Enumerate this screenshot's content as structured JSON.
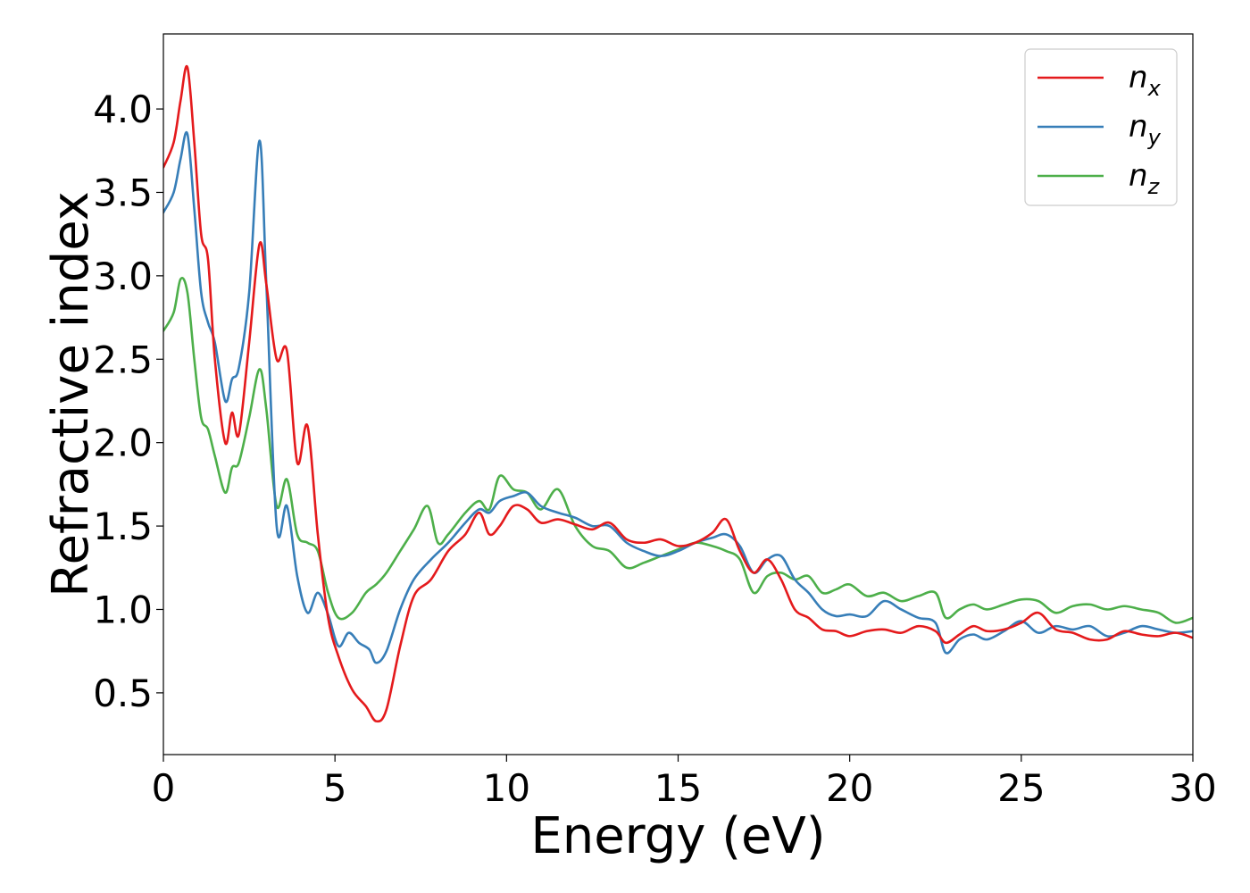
{
  "chart_data": {
    "type": "line",
    "xlabel": "Energy (eV)",
    "ylabel": "Refractive index",
    "xlim": [
      0,
      30
    ],
    "ylim": [
      0.13,
      4.45
    ],
    "xticks": [
      0,
      5,
      10,
      15,
      20,
      25,
      30
    ],
    "xtick_labels": [
      "0",
      "5",
      "10",
      "15",
      "20",
      "25",
      "30"
    ],
    "yticks": [
      0.5,
      1.0,
      1.5,
      2.0,
      2.5,
      3.0,
      3.5,
      4.0
    ],
    "ytick_labels": [
      "0.5",
      "1.0",
      "1.5",
      "2.0",
      "2.5",
      "3.0",
      "3.5",
      "4.0"
    ],
    "grid": false,
    "legend_position": "top-right",
    "series": [
      {
        "name": "n_x",
        "label_main": "n",
        "label_sub": "x",
        "color": "#e41a1c",
        "x": [
          0,
          0.3,
          0.5,
          0.7,
          0.9,
          1.1,
          1.3,
          1.5,
          1.8,
          2.0,
          2.2,
          2.5,
          2.8,
          3.0,
          3.3,
          3.6,
          3.9,
          4.2,
          4.5,
          4.8,
          5.1,
          5.5,
          5.9,
          6.2,
          6.5,
          6.9,
          7.3,
          7.8,
          8.3,
          8.8,
          9.2,
          9.5,
          9.8,
          10.2,
          10.6,
          11.0,
          11.5,
          12.0,
          12.5,
          13.0,
          13.5,
          14.0,
          14.5,
          15.0,
          15.5,
          16.0,
          16.4,
          16.8,
          17.2,
          17.6,
          18.0,
          18.4,
          18.8,
          19.2,
          19.6,
          20.0,
          20.5,
          21.0,
          21.5,
          22.0,
          22.5,
          22.8,
          23.2,
          23.6,
          24.0,
          24.5,
          25.0,
          25.5,
          26.0,
          26.5,
          27.0,
          27.5,
          28.0,
          28.5,
          29.0,
          29.5,
          30.0
        ],
        "y": [
          3.65,
          3.8,
          4.05,
          4.25,
          3.8,
          3.25,
          3.1,
          2.5,
          2.0,
          2.18,
          2.05,
          2.6,
          3.19,
          2.95,
          2.5,
          2.55,
          1.88,
          2.1,
          1.45,
          0.95,
          0.72,
          0.52,
          0.42,
          0.33,
          0.4,
          0.78,
          1.08,
          1.18,
          1.35,
          1.45,
          1.58,
          1.45,
          1.5,
          1.62,
          1.6,
          1.52,
          1.54,
          1.51,
          1.48,
          1.52,
          1.42,
          1.4,
          1.42,
          1.38,
          1.4,
          1.46,
          1.54,
          1.35,
          1.22,
          1.3,
          1.18,
          1.0,
          0.95,
          0.88,
          0.87,
          0.84,
          0.87,
          0.88,
          0.86,
          0.9,
          0.87,
          0.8,
          0.85,
          0.9,
          0.87,
          0.88,
          0.92,
          0.98,
          0.88,
          0.86,
          0.82,
          0.82,
          0.87,
          0.85,
          0.84,
          0.86,
          0.83
        ]
      },
      {
        "name": "n_y",
        "label_main": "n",
        "label_sub": "y",
        "color": "#377eb8",
        "x": [
          0,
          0.3,
          0.5,
          0.7,
          0.9,
          1.1,
          1.3,
          1.5,
          1.8,
          2.0,
          2.2,
          2.5,
          2.8,
          3.0,
          3.3,
          3.6,
          3.9,
          4.2,
          4.5,
          4.8,
          5.1,
          5.4,
          5.7,
          6.0,
          6.2,
          6.5,
          6.9,
          7.3,
          7.8,
          8.3,
          8.8,
          9.2,
          9.5,
          9.8,
          10.2,
          10.6,
          11.0,
          11.5,
          12.0,
          12.5,
          13.0,
          13.5,
          14.0,
          14.5,
          15.0,
          15.5,
          16.0,
          16.4,
          16.8,
          17.2,
          17.6,
          18.0,
          18.4,
          18.8,
          19.2,
          19.6,
          20.0,
          20.5,
          21.0,
          21.5,
          22.0,
          22.5,
          22.8,
          23.2,
          23.6,
          24.0,
          24.5,
          25.0,
          25.5,
          26.0,
          26.5,
          27.0,
          27.5,
          28.0,
          28.5,
          29.0,
          29.5,
          30.0
        ],
        "y": [
          3.38,
          3.5,
          3.7,
          3.85,
          3.4,
          2.9,
          2.72,
          2.6,
          2.25,
          2.38,
          2.45,
          2.9,
          3.81,
          2.95,
          1.5,
          1.62,
          1.2,
          0.98,
          1.1,
          0.97,
          0.78,
          0.86,
          0.8,
          0.76,
          0.68,
          0.75,
          1.0,
          1.18,
          1.3,
          1.4,
          1.52,
          1.6,
          1.58,
          1.65,
          1.68,
          1.7,
          1.62,
          1.58,
          1.55,
          1.5,
          1.5,
          1.4,
          1.35,
          1.32,
          1.35,
          1.4,
          1.43,
          1.45,
          1.38,
          1.22,
          1.3,
          1.32,
          1.18,
          1.1,
          1.0,
          0.96,
          0.97,
          0.96,
          1.05,
          1.0,
          0.95,
          0.92,
          0.74,
          0.82,
          0.85,
          0.82,
          0.87,
          0.93,
          0.86,
          0.9,
          0.88,
          0.9,
          0.84,
          0.86,
          0.9,
          0.88,
          0.86,
          0.87
        ]
      },
      {
        "name": "n_z",
        "label_main": "n",
        "label_sub": "z",
        "color": "#4daf4a",
        "x": [
          0,
          0.3,
          0.5,
          0.7,
          0.9,
          1.1,
          1.3,
          1.5,
          1.8,
          2.0,
          2.2,
          2.5,
          2.8,
          3.0,
          3.3,
          3.6,
          3.9,
          4.2,
          4.5,
          4.8,
          5.1,
          5.5,
          5.9,
          6.2,
          6.5,
          6.9,
          7.3,
          7.7,
          8.0,
          8.3,
          8.8,
          9.2,
          9.5,
          9.8,
          10.2,
          10.6,
          11.0,
          11.5,
          12.0,
          12.5,
          13.0,
          13.5,
          14.0,
          14.5,
          15.0,
          15.5,
          16.0,
          16.4,
          16.8,
          17.2,
          17.6,
          18.0,
          18.4,
          18.8,
          19.2,
          19.6,
          20.0,
          20.5,
          21.0,
          21.5,
          22.0,
          22.5,
          22.8,
          23.2,
          23.6,
          24.0,
          24.5,
          25.0,
          25.5,
          26.0,
          26.5,
          27.0,
          27.5,
          28.0,
          28.5,
          29.0,
          29.5,
          30.0
        ],
        "y": [
          2.67,
          2.78,
          2.98,
          2.9,
          2.5,
          2.15,
          2.08,
          1.92,
          1.7,
          1.85,
          1.88,
          2.15,
          2.44,
          2.2,
          1.62,
          1.78,
          1.45,
          1.4,
          1.35,
          1.1,
          0.95,
          0.98,
          1.1,
          1.15,
          1.22,
          1.35,
          1.48,
          1.62,
          1.4,
          1.45,
          1.58,
          1.65,
          1.6,
          1.8,
          1.72,
          1.7,
          1.6,
          1.72,
          1.5,
          1.38,
          1.35,
          1.25,
          1.28,
          1.32,
          1.36,
          1.4,
          1.38,
          1.35,
          1.3,
          1.1,
          1.2,
          1.22,
          1.18,
          1.2,
          1.1,
          1.12,
          1.15,
          1.08,
          1.1,
          1.05,
          1.08,
          1.1,
          0.95,
          1.0,
          1.03,
          1.0,
          1.03,
          1.06,
          1.05,
          0.98,
          1.02,
          1.03,
          1.0,
          1.02,
          1.0,
          0.98,
          0.92,
          0.95
        ]
      }
    ]
  }
}
